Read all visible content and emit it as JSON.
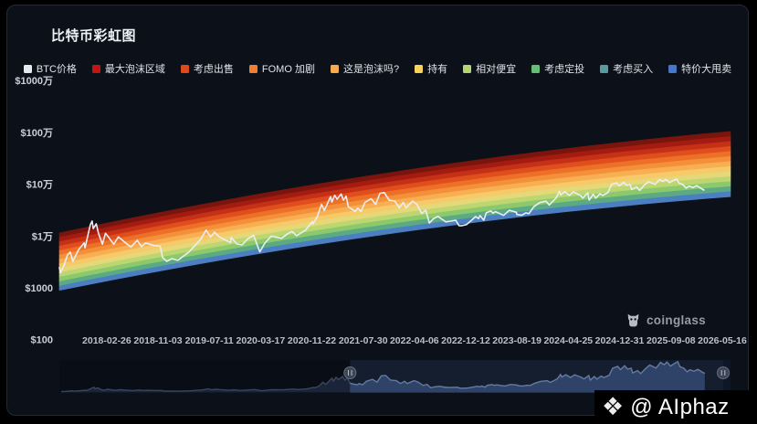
{
  "header": {
    "title": "比特币彩虹图"
  },
  "watermark": {
    "brand": "coinglass"
  },
  "footer_badge": {
    "text": "@ AIphaz"
  },
  "navigator": {
    "range_start": "2021-05-20",
    "range_end": "2026-05-16"
  },
  "colors": {
    "page_bg": "#000000",
    "card_bg": "#0c1018",
    "card_border": "#232a36",
    "price_line": "#ebeef3",
    "axis_text": "#c9cfdb",
    "date_text": "#b9c0cd",
    "nav_bg": "#0f1726",
    "nav_area": "#2b3e63",
    "nav_line": "#64799f"
  },
  "chart_data": {
    "type": "line",
    "title": "比特币彩虹图",
    "y_axis": {
      "scale": "log",
      "ticks": [
        {
          "label": "$1000万",
          "log10_usd": 7
        },
        {
          "label": "$100万",
          "log10_usd": 6
        },
        {
          "label": "$10万",
          "log10_usd": 5
        },
        {
          "label": "$1万",
          "log10_usd": 4
        },
        {
          "label": "$1000",
          "log10_usd": 3
        },
        {
          "label": "$100",
          "log10_usd": 2
        }
      ]
    },
    "x_axis": {
      "tick_dates": [
        "2018-02-26",
        "2018-11-03",
        "2019-07-11",
        "2020-03-17",
        "2020-11-22",
        "2021-07-30",
        "2022-04-06",
        "2022-12-12",
        "2023-08-19",
        "2024-04-25",
        "2024-12-31",
        "2025-09-08",
        "2026-05-16"
      ]
    },
    "date_range": {
      "start": "2017-07-10",
      "end": "2026-05-16"
    },
    "legend": [
      {
        "label": "BTC价格",
        "color": "#e6e8ee"
      },
      {
        "label": "最大泡沫区域",
        "color": "#c21511"
      },
      {
        "label": "考虑出售",
        "color": "#dd4a1b"
      },
      {
        "label": "FOMO 加剧",
        "color": "#ee7e30"
      },
      {
        "label": "这是泡沫吗?",
        "color": "#f4ab4f"
      },
      {
        "label": "持有",
        "color": "#f6d35c"
      },
      {
        "label": "相对便宜",
        "color": "#b5d36e"
      },
      {
        "label": "考虑定投",
        "color": "#68bd76"
      },
      {
        "label": "考虑买入",
        "color": "#579aa0"
      },
      {
        "label": "特价大甩卖",
        "color": "#4877c6"
      }
    ],
    "rainbow_band": {
      "stripe_colors": [
        "#7a150e",
        "#a31b11",
        "#c53117",
        "#e04e1d",
        "#ec7027",
        "#f49039",
        "#f8ae52",
        "#f7ca69",
        "#e5d878",
        "#bcd671",
        "#8cc96d",
        "#5baa84",
        "#4c7fc1"
      ],
      "top_log10_usd": [
        4.06,
        5.24,
        6.02
      ],
      "bottom_log10_usd": [
        2.95,
        4.06,
        4.76
      ]
    },
    "series": [
      {
        "name": "BTC价格",
        "points": [
          [
            "2017-07-10",
            2450
          ],
          [
            "2017-07-16",
            1950
          ],
          [
            "2017-08-02",
            2750
          ],
          [
            "2017-08-19",
            4350
          ],
          [
            "2017-09-01",
            4900
          ],
          [
            "2017-09-14",
            3250
          ],
          [
            "2017-10-12",
            5450
          ],
          [
            "2017-11-08",
            7400
          ],
          [
            "2017-11-12",
            5900
          ],
          [
            "2017-12-08",
            16500
          ],
          [
            "2017-12-17",
            19500
          ],
          [
            "2017-12-22",
            13900
          ],
          [
            "2018-01-06",
            17200
          ],
          [
            "2018-01-17",
            11200
          ],
          [
            "2018-02-05",
            6950
          ],
          [
            "2018-02-20",
            11300
          ],
          [
            "2018-03-08",
            9400
          ],
          [
            "2018-04-01",
            6950
          ],
          [
            "2018-04-24",
            9650
          ],
          [
            "2018-05-29",
            7350
          ],
          [
            "2018-06-24",
            6150
          ],
          [
            "2018-07-25",
            8250
          ],
          [
            "2018-08-14",
            6250
          ],
          [
            "2018-09-04",
            7350
          ],
          [
            "2018-10-15",
            6550
          ],
          [
            "2018-11-14",
            6350
          ],
          [
            "2018-11-25",
            3850
          ],
          [
            "2018-12-15",
            3250
          ],
          [
            "2019-01-10",
            3650
          ],
          [
            "2019-02-08",
            3400
          ],
          [
            "2019-04-02",
            4900
          ],
          [
            "2019-05-30",
            8650
          ],
          [
            "2019-06-26",
            13000
          ],
          [
            "2019-07-17",
            9600
          ],
          [
            "2019-08-06",
            11850
          ],
          [
            "2019-08-28",
            9700
          ],
          [
            "2019-09-24",
            8450
          ],
          [
            "2019-10-23",
            7450
          ],
          [
            "2019-10-26",
            9350
          ],
          [
            "2019-11-22",
            7050
          ],
          [
            "2019-12-18",
            6750
          ],
          [
            "2020-01-14",
            8850
          ],
          [
            "2020-02-12",
            10350
          ],
          [
            "2020-03-13",
            4950
          ],
          [
            "2020-04-07",
            7300
          ],
          [
            "2020-05-08",
            9950
          ],
          [
            "2020-06-27",
            9050
          ],
          [
            "2020-07-27",
            11050
          ],
          [
            "2020-08-17",
            12300
          ],
          [
            "2020-09-08",
            10150
          ],
          [
            "2020-10-21",
            12850
          ],
          [
            "2020-11-24",
            18900
          ],
          [
            "2020-11-27",
            17000
          ],
          [
            "2020-12-19",
            23850
          ],
          [
            "2021-01-08",
            40900
          ],
          [
            "2021-01-22",
            31000
          ],
          [
            "2021-02-21",
            57500
          ],
          [
            "2021-02-28",
            45200
          ],
          [
            "2021-03-13",
            61200
          ],
          [
            "2021-03-25",
            51400
          ],
          [
            "2021-04-14",
            64850
          ],
          [
            "2021-04-25",
            49100
          ],
          [
            "2021-05-08",
            58850
          ],
          [
            "2021-05-19",
            36700
          ],
          [
            "2021-06-22",
            29800
          ],
          [
            "2021-07-04",
            34700
          ],
          [
            "2021-07-20",
            29800
          ],
          [
            "2021-08-08",
            44650
          ],
          [
            "2021-09-07",
            52700
          ],
          [
            "2021-09-29",
            41000
          ],
          [
            "2021-10-20",
            66950
          ],
          [
            "2021-11-10",
            68950
          ],
          [
            "2021-12-04",
            49300
          ],
          [
            "2022-01-01",
            47300
          ],
          [
            "2022-01-22",
            35100
          ],
          [
            "2022-02-10",
            44600
          ],
          [
            "2022-02-24",
            35100
          ],
          [
            "2022-03-29",
            47450
          ],
          [
            "2022-04-18",
            40850
          ],
          [
            "2022-05-12",
            27200
          ],
          [
            "2022-05-31",
            31800
          ],
          [
            "2022-06-18",
            17800
          ],
          [
            "2022-07-08",
            21600
          ],
          [
            "2022-07-30",
            23800
          ],
          [
            "2022-08-19",
            20900
          ],
          [
            "2022-09-06",
            18800
          ],
          [
            "2022-09-30",
            19400
          ],
          [
            "2022-10-25",
            20100
          ],
          [
            "2022-11-09",
            15900
          ],
          [
            "2022-11-21",
            15750
          ],
          [
            "2022-12-17",
            16700
          ],
          [
            "2023-01-14",
            20950
          ],
          [
            "2023-01-29",
            23750
          ],
          [
            "2023-02-13",
            21700
          ],
          [
            "2023-02-20",
            24850
          ],
          [
            "2023-03-10",
            20150
          ],
          [
            "2023-03-22",
            28100
          ],
          [
            "2023-04-14",
            30500
          ],
          [
            "2023-04-24",
            27550
          ],
          [
            "2023-05-06",
            29550
          ],
          [
            "2023-06-15",
            25050
          ],
          [
            "2023-07-13",
            31450
          ],
          [
            "2023-08-16",
            28700
          ],
          [
            "2023-08-18",
            26050
          ],
          [
            "2023-09-11",
            25150
          ],
          [
            "2023-10-01",
            28000
          ],
          [
            "2023-10-16",
            27100
          ],
          [
            "2023-11-09",
            36750
          ],
          [
            "2023-12-08",
            44250
          ],
          [
            "2024-01-08",
            46950
          ],
          [
            "2024-01-23",
            39600
          ],
          [
            "2024-02-26",
            54500
          ],
          [
            "2024-03-13",
            73100
          ],
          [
            "2024-03-19",
            61950
          ],
          [
            "2024-04-08",
            71650
          ],
          [
            "2024-04-30",
            60650
          ],
          [
            "2024-05-21",
            71450
          ],
          [
            "2024-06-24",
            60300
          ],
          [
            "2024-07-05",
            54050
          ],
          [
            "2024-07-29",
            68250
          ],
          [
            "2024-08-05",
            49100
          ],
          [
            "2024-08-25",
            64350
          ],
          [
            "2024-09-06",
            53950
          ],
          [
            "2024-09-27",
            65850
          ],
          [
            "2024-10-10",
            60350
          ],
          [
            "2024-11-05",
            69400
          ],
          [
            "2024-11-22",
            99000
          ],
          [
            "2024-12-17",
            106150
          ],
          [
            "2024-12-30",
            92650
          ],
          [
            "2025-01-20",
            109100
          ],
          [
            "2025-02-03",
            95250
          ],
          [
            "2025-02-21",
            98300
          ],
          [
            "2025-02-28",
            78950
          ],
          [
            "2025-03-24",
            88500
          ],
          [
            "2025-04-08",
            76300
          ],
          [
            "2025-05-01",
            96500
          ],
          [
            "2025-05-22",
            111700
          ],
          [
            "2025-06-22",
            99050
          ],
          [
            "2025-07-14",
            122850
          ],
          [
            "2025-08-01",
            113350
          ],
          [
            "2025-08-14",
            124450
          ],
          [
            "2025-09-01",
            107350
          ],
          [
            "2025-09-18",
            117500
          ],
          [
            "2025-10-06",
            126200
          ],
          [
            "2025-10-17",
            104550
          ],
          [
            "2025-11-04",
            99000
          ],
          [
            "2025-11-21",
            84050
          ],
          [
            "2025-12-05",
            92050
          ],
          [
            "2025-12-24",
            86050
          ],
          [
            "2026-01-12",
            94000
          ],
          [
            "2026-01-28",
            85050
          ],
          [
            "2026-02-15",
            77050
          ]
        ]
      }
    ]
  }
}
